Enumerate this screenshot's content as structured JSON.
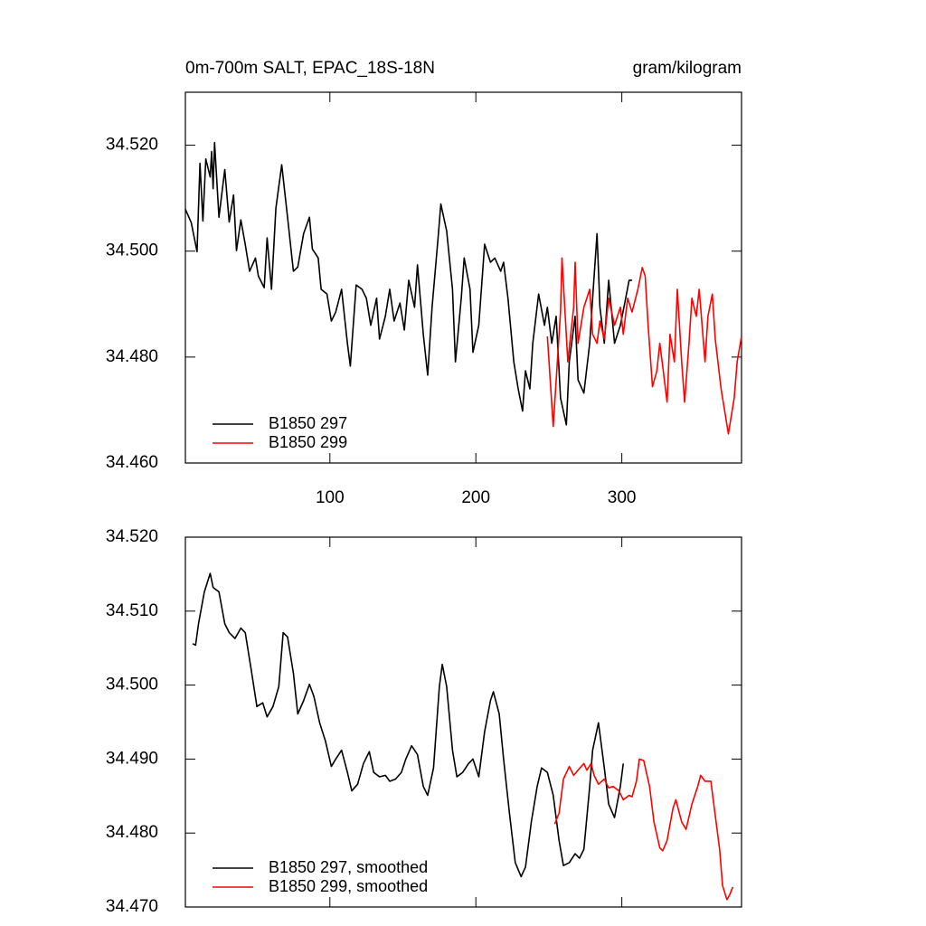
{
  "chart_data": [
    {
      "type": "line",
      "title": "0m-700m SALT, EPAC_18S-18N",
      "units": "gram/kilogram",
      "xlim": [
        1,
        382
      ],
      "ylim": [
        34.46,
        34.53
      ],
      "xticks": [
        100,
        200,
        300
      ],
      "yticks": [
        {
          "value": 34.46,
          "label": "34.460"
        },
        {
          "value": 34.48,
          "label": "34.480"
        },
        {
          "value": 34.5,
          "label": "34.500"
        },
        {
          "value": 34.52,
          "label": "34.520"
        }
      ],
      "legend": "lower left",
      "series": [
        {
          "name": "B1850 297",
          "color": "#000000",
          "x": [
            1,
            5,
            9,
            11,
            13,
            15,
            18,
            19,
            20,
            21,
            24,
            28,
            31,
            34,
            36,
            39,
            42,
            45,
            49,
            51,
            55,
            57,
            60,
            63,
            67,
            71,
            75,
            78,
            82,
            86,
            88,
            92,
            94,
            98,
            101,
            104,
            108,
            112,
            114,
            118,
            122,
            125,
            128,
            132,
            134,
            138,
            141,
            144,
            148,
            151,
            154,
            158,
            160,
            164,
            167,
            170,
            174,
            176,
            180,
            184,
            186,
            190,
            192,
            196,
            198,
            202,
            206,
            210,
            213,
            217,
            219,
            222,
            226,
            229,
            232,
            234,
            237,
            239,
            243,
            247,
            249,
            252,
            255,
            258,
            262,
            264,
            268,
            270,
            274,
            278,
            280,
            283,
            285,
            288,
            291,
            295,
            299,
            302,
            305,
            307
          ],
          "values": [
            34.5079,
            34.5054,
            34.4999,
            34.5166,
            34.5057,
            34.5174,
            34.514,
            34.5188,
            34.5118,
            34.5205,
            34.5064,
            34.5154,
            34.5055,
            34.5106,
            34.5001,
            34.5059,
            34.5013,
            34.4962,
            34.4987,
            34.4953,
            34.4931,
            34.5025,
            34.4928,
            34.5081,
            34.5163,
            34.5064,
            34.4962,
            34.497,
            34.5033,
            34.5064,
            34.5004,
            34.4987,
            34.4928,
            34.4919,
            34.4868,
            34.4885,
            34.4928,
            34.4826,
            34.4783,
            34.4936,
            34.4928,
            34.4911,
            34.486,
            34.4911,
            34.4834,
            34.4877,
            34.4928,
            34.4868,
            34.4902,
            34.4851,
            34.4945,
            34.4894,
            34.4974,
            34.4843,
            34.4766,
            34.4894,
            34.5021,
            34.5089,
            34.5038,
            34.4928,
            34.4791,
            34.4911,
            34.4987,
            34.4928,
            34.4809,
            34.486,
            34.5013,
            34.4979,
            34.4987,
            34.4962,
            34.4979,
            34.4911,
            34.4791,
            34.474,
            34.4698,
            34.4774,
            34.474,
            34.4826,
            34.4919,
            34.486,
            34.4894,
            34.4826,
            34.4877,
            34.4723,
            34.4672,
            34.4791,
            34.4877,
            34.4757,
            34.4732,
            34.4826,
            34.4911,
            34.5033,
            34.4894,
            34.4826,
            34.4945,
            34.4826,
            34.486,
            34.4902,
            34.4945,
            34.4945
          ]
        },
        {
          "name": "B1850 299",
          "color": "#ff0000",
          "x": [
            249,
            253,
            258,
            259,
            263,
            267,
            268,
            270,
            274,
            278,
            280,
            283,
            285,
            288,
            291,
            295,
            299,
            301,
            304,
            307,
            311,
            314,
            316,
            318,
            321,
            324,
            326,
            328,
            331,
            333,
            336,
            338,
            341,
            343,
            346,
            348,
            351,
            353,
            357,
            359,
            362,
            364,
            368,
            371,
            373,
            377,
            379,
            382
          ],
          "values": [
            34.4839,
            34.4669,
            34.4885,
            34.4987,
            34.4791,
            34.4894,
            34.4979,
            34.4826,
            34.4894,
            34.4928,
            34.4843,
            34.4826,
            34.4868,
            34.4834,
            34.4911,
            34.486,
            34.4894,
            34.4843,
            34.4911,
            34.4885,
            34.4928,
            34.4969,
            34.4953,
            34.486,
            34.4744,
            34.4774,
            34.4826,
            34.4783,
            34.4715,
            34.4843,
            34.4791,
            34.4928,
            34.4791,
            34.4715,
            34.4826,
            34.4911,
            34.4877,
            34.4928,
            34.4791,
            34.4877,
            34.4919,
            34.4834,
            34.474,
            34.4689,
            34.4655,
            34.4723,
            34.4791,
            34.4839
          ]
        }
      ]
    },
    {
      "type": "line",
      "xlim": [
        1,
        382
      ],
      "ylim": [
        34.47,
        34.52
      ],
      "xticks": [
        100,
        200,
        300
      ],
      "yticks": [
        {
          "value": 34.47,
          "label": "34.470"
        },
        {
          "value": 34.48,
          "label": "34.480"
        },
        {
          "value": 34.49,
          "label": "34.490"
        },
        {
          "value": 34.5,
          "label": "34.500"
        },
        {
          "value": 34.51,
          "label": "34.510"
        },
        {
          "value": 34.52,
          "label": "34.520"
        }
      ],
      "legend": "lower left",
      "series": [
        {
          "name": "B1850 297, smoothed",
          "color": "#000000",
          "x": [
            6,
            8,
            10,
            14,
            18,
            20,
            24,
            28,
            31,
            35,
            39,
            42,
            46,
            50,
            54,
            57,
            61,
            65,
            68,
            71,
            75,
            78,
            82,
            86,
            89,
            93,
            97,
            101,
            104,
            108,
            112,
            115,
            119,
            123,
            127,
            130,
            134,
            138,
            141,
            145,
            149,
            152,
            156,
            160,
            164,
            167,
            171,
            175,
            177,
            180,
            184,
            187,
            191,
            195,
            198,
            202,
            206,
            210,
            212,
            216,
            219,
            223,
            227,
            231,
            234,
            238,
            242,
            245,
            249,
            253,
            257,
            260,
            264,
            268,
            271,
            274,
            278,
            280,
            284,
            288,
            291,
            295,
            299,
            301
          ],
          "values": [
            34.5056,
            34.5054,
            34.5083,
            34.5126,
            34.5151,
            34.5132,
            34.5126,
            34.5083,
            34.5071,
            34.5063,
            34.5077,
            34.5071,
            34.5022,
            34.4971,
            34.4976,
            34.4957,
            34.4971,
            34.4998,
            34.5071,
            34.5065,
            34.5016,
            34.4961,
            34.4979,
            34.5001,
            34.4985,
            34.4949,
            34.4924,
            34.489,
            34.49,
            34.4912,
            34.4882,
            34.4857,
            34.4866,
            34.4894,
            34.491,
            34.4882,
            34.4876,
            34.4878,
            34.487,
            34.4873,
            34.4882,
            34.49,
            34.4918,
            34.4906,
            34.4863,
            34.4851,
            34.4888,
            34.4998,
            34.5028,
            34.4998,
            34.4912,
            34.4876,
            34.4882,
            34.4894,
            34.49,
            34.4876,
            34.4937,
            34.4979,
            34.4991,
            34.4961,
            34.49,
            34.4827,
            34.476,
            34.4741,
            34.4754,
            34.4815,
            34.4863,
            34.4888,
            34.4882,
            34.4851,
            34.479,
            34.4756,
            34.476,
            34.4772,
            34.4766,
            34.4778,
            34.4863,
            34.4912,
            34.4949,
            34.4888,
            34.4839,
            34.4821,
            34.4863,
            34.4894
          ]
        },
        {
          "name": "B1850 299, smoothed",
          "color": "#ff0000",
          "x": [
            254,
            257,
            260,
            264,
            267,
            270,
            274,
            276,
            279,
            281,
            284,
            288,
            291,
            294,
            298,
            301,
            305,
            307,
            310,
            312,
            315,
            319,
            322,
            326,
            328,
            331,
            335,
            337,
            341,
            344,
            348,
            352,
            354,
            357,
            361,
            363,
            367,
            369,
            372,
            374,
            376
          ],
          "values": [
            34.4812,
            34.4827,
            34.4873,
            34.489,
            34.4878,
            34.4885,
            34.4894,
            34.4885,
            34.4894,
            34.4878,
            34.4866,
            34.4873,
            34.4861,
            34.4863,
            34.4857,
            34.4845,
            34.4851,
            34.4849,
            34.487,
            34.49,
            34.4898,
            34.4863,
            34.4815,
            34.478,
            34.4776,
            34.479,
            34.4833,
            34.4845,
            34.4815,
            34.4805,
            34.4839,
            34.4863,
            34.4878,
            34.487,
            34.487,
            34.4839,
            34.4778,
            34.4729,
            34.471,
            34.4717,
            34.4727
          ]
        }
      ]
    }
  ]
}
